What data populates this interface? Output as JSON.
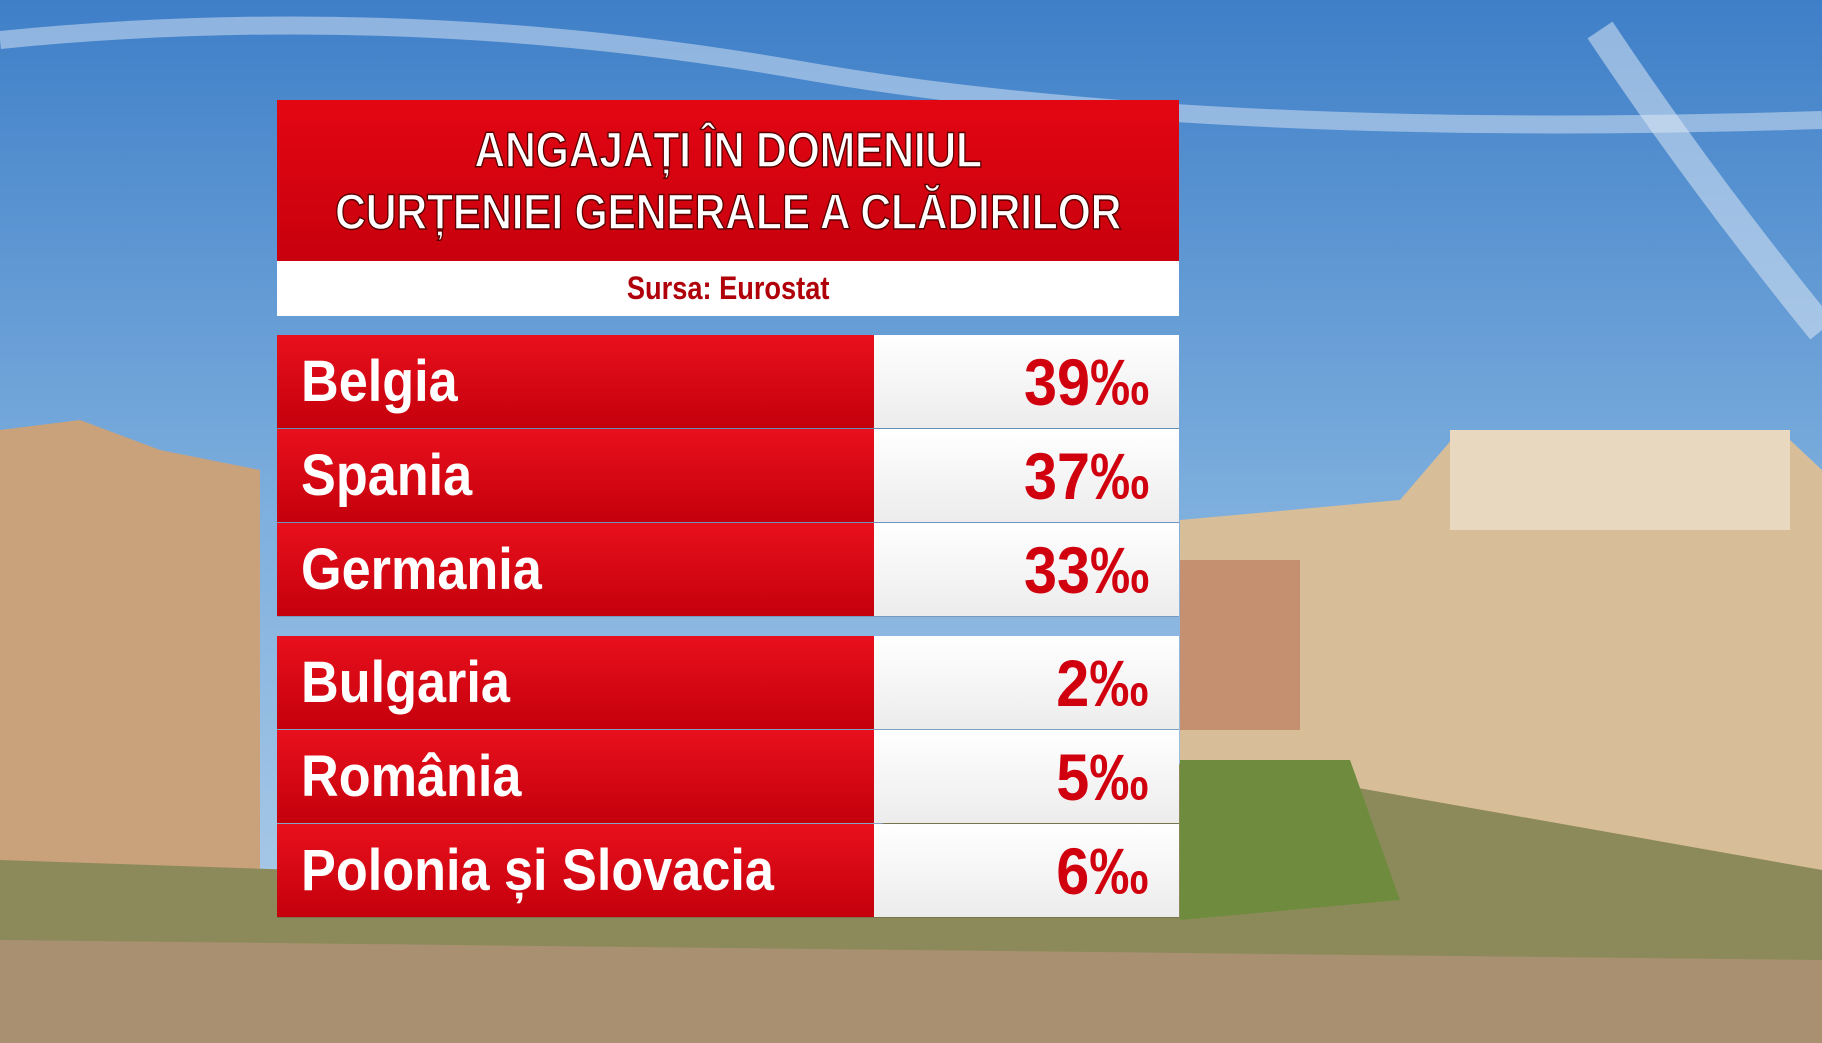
{
  "header": {
    "title": [
      "ANGAJAȚI ÎN DOMENIUL",
      "CURȚENIEI GENERALE A CLĂDIRILOR"
    ],
    "source": "Sursa: Eurostat"
  },
  "table": {
    "groups": [
      [
        [
          "Belgia",
          "39‰"
        ],
        [
          "Spania",
          "37‰"
        ],
        [
          "Germania",
          "33‰"
        ]
      ],
      [
        [
          "Bulgaria",
          "2‰"
        ],
        [
          "România",
          "5‰"
        ],
        [
          "Polonia și Slovacia",
          "6‰"
        ]
      ]
    ]
  }
}
